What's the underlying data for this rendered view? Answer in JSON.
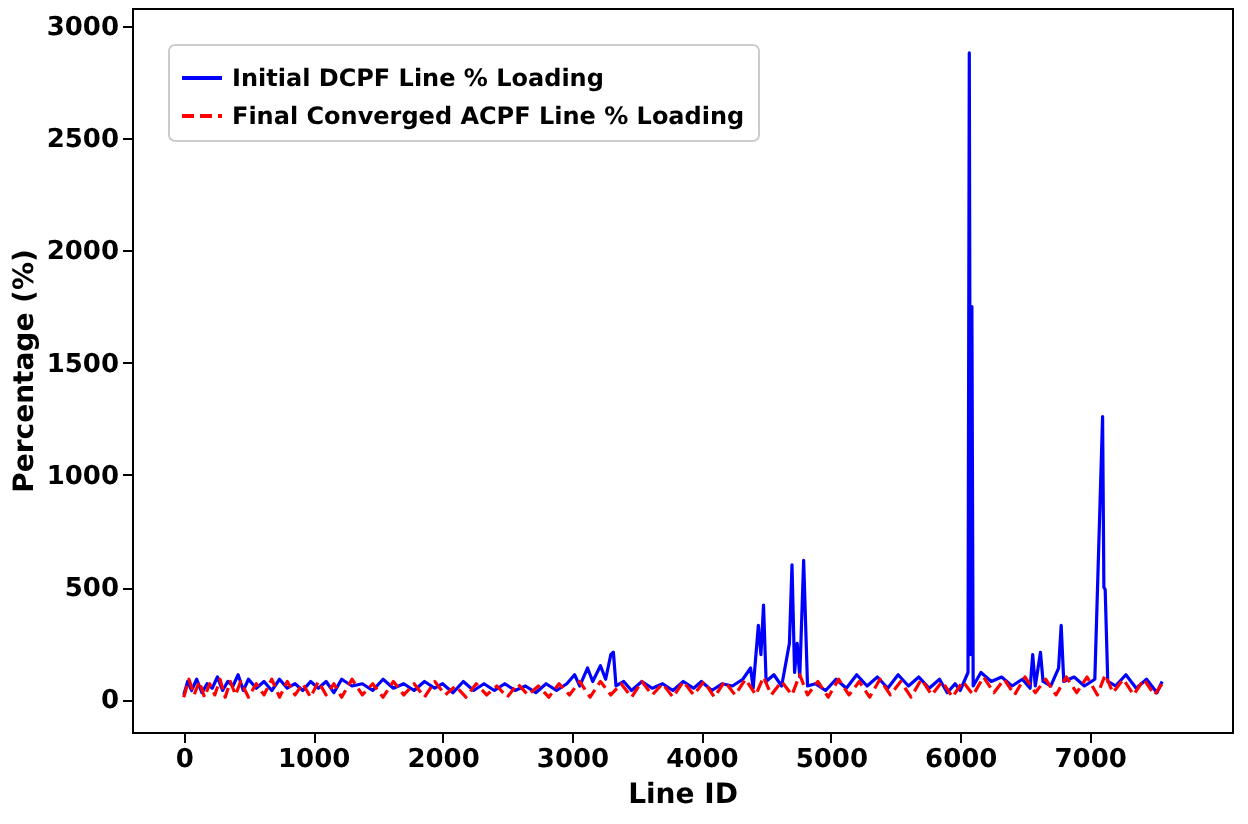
{
  "chart_data": {
    "type": "line",
    "xlabel": "Line ID",
    "ylabel": "Percentage (%)",
    "xlim": [
      -400,
      8100
    ],
    "ylim": [
      -145,
      3080
    ],
    "xticks": [
      0,
      1000,
      2000,
      3000,
      4000,
      5000,
      6000,
      7000
    ],
    "yticks": [
      0,
      500,
      1000,
      1500,
      2000,
      2500,
      3000
    ],
    "grid": false,
    "legend": "top left",
    "series": [
      {
        "name": "Initial DCPF Line % Loading",
        "color": "#0000ff",
        "line_style": "solid",
        "x": [
          0,
          30,
          60,
          100,
          140,
          180,
          220,
          260,
          300,
          340,
          380,
          420,
          460,
          500,
          560,
          620,
          680,
          740,
          800,
          860,
          920,
          980,
          1040,
          1100,
          1160,
          1220,
          1300,
          1380,
          1460,
          1540,
          1620,
          1700,
          1780,
          1860,
          1940,
          2000,
          2080,
          2160,
          2240,
          2320,
          2400,
          2480,
          2560,
          2640,
          2720,
          2800,
          2880,
          2960,
          3020,
          3060,
          3120,
          3160,
          3220,
          3260,
          3300,
          3320,
          3340,
          3400,
          3460,
          3540,
          3620,
          3700,
          3780,
          3860,
          3940,
          4000,
          4080,
          4160,
          4240,
          4320,
          4380,
          4400,
          4440,
          4460,
          4480,
          4500,
          4560,
          4620,
          4680,
          4700,
          4720,
          4740,
          4760,
          4790,
          4820,
          4880,
          4960,
          5040,
          5120,
          5200,
          5280,
          5360,
          5440,
          5520,
          5600,
          5680,
          5760,
          5840,
          5900,
          5960,
          6000,
          6060,
          6070,
          6080,
          6090,
          6100,
          6160,
          6240,
          6320,
          6400,
          6480,
          6540,
          6560,
          6580,
          6620,
          6640,
          6700,
          6760,
          6780,
          6800,
          6880,
          6960,
          7040,
          7100,
          7110,
          7120,
          7140,
          7200,
          7280,
          7360,
          7440,
          7520,
          7560
        ],
        "values": [
          20,
          80,
          40,
          90,
          30,
          70,
          50,
          100,
          40,
          80,
          60,
          110,
          40,
          90,
          50,
          80,
          40,
          90,
          50,
          70,
          40,
          80,
          50,
          80,
          30,
          90,
          60,
          70,
          40,
          90,
          50,
          70,
          40,
          80,
          50,
          70,
          30,
          80,
          40,
          70,
          40,
          70,
          40,
          60,
          30,
          70,
          40,
          70,
          110,
          60,
          140,
          80,
          150,
          90,
          200,
          210,
          60,
          80,
          40,
          80,
          50,
          70,
          40,
          80,
          50,
          80,
          40,
          70,
          60,
          90,
          140,
          50,
          330,
          200,
          420,
          80,
          110,
          60,
          250,
          600,
          120,
          250,
          100,
          620,
          60,
          70,
          40,
          90,
          50,
          110,
          60,
          100,
          50,
          110,
          60,
          100,
          50,
          90,
          30,
          70,
          40,
          120,
          2880,
          200,
          1750,
          60,
          120,
          80,
          100,
          60,
          90,
          50,
          200,
          60,
          210,
          80,
          60,
          140,
          330,
          80,
          100,
          60,
          90,
          1260,
          500,
          490,
          80,
          60,
          110,
          50,
          90,
          30,
          80
        ]
      },
      {
        "name": "Final Converged ACPF Line % Loading",
        "color": "#ff0000",
        "line_style": "dashed",
        "x": [
          0,
          40,
          80,
          120,
          160,
          200,
          240,
          280,
          320,
          360,
          400,
          440,
          500,
          560,
          620,
          680,
          740,
          800,
          860,
          920,
          980,
          1040,
          1100,
          1160,
          1220,
          1300,
          1380,
          1460,
          1540,
          1620,
          1700,
          1780,
          1860,
          1940,
          2020,
          2100,
          2180,
          2260,
          2340,
          2420,
          2500,
          2580,
          2660,
          2740,
          2820,
          2900,
          2980,
          3060,
          3140,
          3220,
          3300,
          3380,
          3460,
          3540,
          3620,
          3700,
          3780,
          3860,
          3940,
          4020,
          4100,
          4180,
          4260,
          4340,
          4420,
          4480,
          4540,
          4620,
          4700,
          4760,
          4820,
          4900,
          4980,
          5060,
          5140,
          5220,
          5300,
          5380,
          5460,
          5540,
          5620,
          5700,
          5780,
          5860,
          5940,
          6020,
          6100,
          6180,
          6260,
          6340,
          6420,
          6500,
          6580,
          6660,
          6740,
          6820,
          6900,
          6980,
          7060,
          7120,
          7180,
          7260,
          7340,
          7420,
          7500,
          7560
        ],
        "values": [
          10,
          90,
          20,
          80,
          10,
          70,
          20,
          90,
          10,
          80,
          20,
          80,
          10,
          70,
          20,
          90,
          10,
          80,
          20,
          70,
          10,
          80,
          20,
          70,
          10,
          90,
          20,
          70,
          10,
          80,
          20,
          70,
          10,
          80,
          20,
          60,
          10,
          70,
          20,
          60,
          10,
          70,
          20,
          60,
          10,
          70,
          20,
          80,
          10,
          80,
          20,
          70,
          10,
          80,
          20,
          70,
          10,
          80,
          20,
          80,
          10,
          80,
          20,
          90,
          20,
          100,
          20,
          80,
          20,
          110,
          20,
          80,
          10,
          90,
          20,
          80,
          10,
          90,
          20,
          80,
          10,
          90,
          20,
          80,
          10,
          80,
          20,
          100,
          30,
          90,
          20,
          100,
          30,
          90,
          20,
          100,
          30,
          100,
          20,
          110,
          30,
          90,
          20,
          90,
          20,
          70
        ]
      }
    ]
  }
}
